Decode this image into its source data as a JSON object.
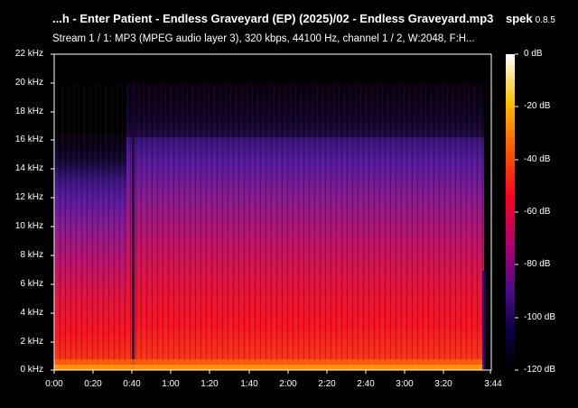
{
  "header": {
    "file_title": "...h - Enter Patient - Endless Graveyard (EP) (2025)/02 - Endless Graveyard.mp3",
    "app_name": "spek",
    "app_version": "0.8.5",
    "stream_info": "Stream 1 / 1: MP3 (MPEG audio layer 3), 320 kbps, 44100 Hz, channel 1 / 2, W:2048, F:H..."
  },
  "frequency_axis": {
    "labels": [
      "22 kHz",
      "20 kHz",
      "18 kHz",
      "16 kHz",
      "14 kHz",
      "12 kHz",
      "10 kHz",
      "8 kHz",
      "6 kHz",
      "4 kHz",
      "2 kHz",
      "0 kHz"
    ]
  },
  "time_axis": {
    "labels": [
      "0:00",
      "0:20",
      "0:40",
      "1:00",
      "1:20",
      "1:40",
      "2:00",
      "2:20",
      "2:40",
      "3:00",
      "3:20",
      "3:44"
    ]
  },
  "db_scale": {
    "labels": [
      "0 dB",
      "-20 dB",
      "-40 dB",
      "-60 dB",
      "-80 dB",
      "-100 dB",
      "-120 dB"
    ]
  },
  "colors": {
    "background": "#000000",
    "low": "#0a0020",
    "mid_low": "#5a1a9a",
    "mid": "#c2127a",
    "mid_high": "#ff1a1a",
    "high": "#ff7a00",
    "peak": "#ffffcc"
  }
}
